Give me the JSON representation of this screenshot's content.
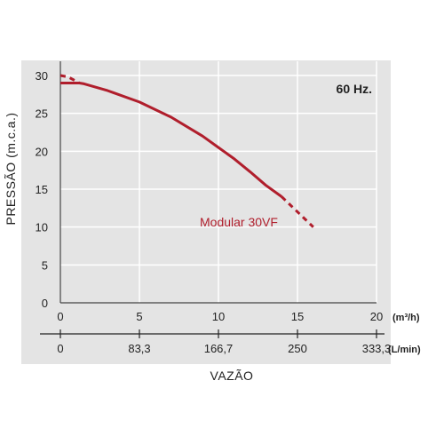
{
  "chart_data": {
    "type": "line",
    "ylabel": "PRESSÃO (m.c.a.)",
    "xlabel": "VAZÃO",
    "frequency_label": "60 Hz.",
    "ylim": [
      0,
      30
    ],
    "y_ticks": [
      "0",
      "5",
      "10",
      "15",
      "20",
      "25",
      "30"
    ],
    "y_tick_values": [
      0,
      5,
      10,
      15,
      20,
      25,
      30
    ],
    "xlim": [
      0,
      20
    ],
    "x_ticks": [
      "0",
      "5",
      "10",
      "15",
      "20"
    ],
    "x_tick_values": [
      0,
      5,
      10,
      15,
      20
    ],
    "x_unit": "(m³/h)",
    "x2_ticks": [
      "0",
      "83,3",
      "166,7",
      "250",
      "333,3"
    ],
    "x2_tick_values": [
      0,
      5,
      10,
      15,
      20
    ],
    "x2_unit": "(L/min)",
    "grid": true,
    "colors": {
      "series": "#b01e2c",
      "plot_bg": "#e4e4e4",
      "grid": "#ffffff"
    },
    "series": [
      {
        "name": "Modular 30VF",
        "solid": [
          [
            0,
            29
          ],
          [
            1.2,
            29
          ],
          [
            1.5,
            28.9
          ],
          [
            3,
            28
          ],
          [
            5,
            26.5
          ],
          [
            7,
            24.5
          ],
          [
            9,
            22
          ],
          [
            10,
            20.5
          ],
          [
            11,
            19
          ],
          [
            12,
            17.3
          ],
          [
            13,
            15.5
          ],
          [
            14,
            14
          ]
        ],
        "dashed_start": [
          [
            0,
            30
          ],
          [
            0.5,
            29.8
          ],
          [
            1.2,
            29
          ]
        ],
        "dashed_end": [
          [
            14,
            14
          ],
          [
            15,
            12
          ],
          [
            16,
            10
          ]
        ]
      }
    ]
  }
}
